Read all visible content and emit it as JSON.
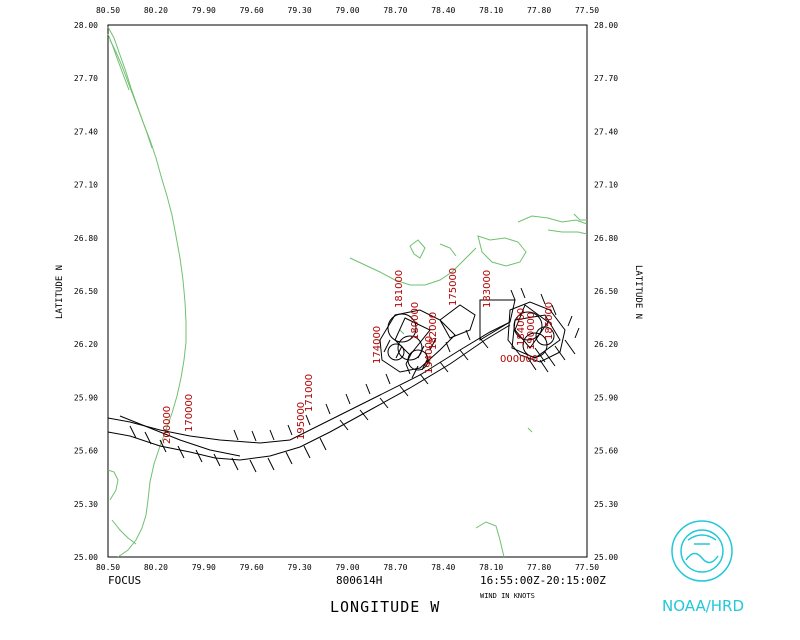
{
  "axes": {
    "lon_ticks": [
      "80.50",
      "80.20",
      "79.90",
      "79.60",
      "79.30",
      "79.00",
      "78.70",
      "78.40",
      "78.10",
      "77.80",
      "77.50"
    ],
    "lat_ticks": [
      "28.00",
      "27.70",
      "27.40",
      "27.10",
      "26.80",
      "26.50",
      "26.20",
      "25.90",
      "25.60",
      "25.30",
      "25.00"
    ],
    "xlabel": "LONGITUDE   W",
    "ylabel_left": "LATITUDE  N",
    "ylabel_right": "LATITUDE  N"
  },
  "footer": {
    "left": "FOCUS",
    "center": "800614H",
    "right": "16:55:00Z-20:15:00Z",
    "units": "WIND IN KNOTS"
  },
  "logo": {
    "text": "NOAA/HRD",
    "mark": "noaa-seal-icon"
  },
  "time_labels": [
    "200000",
    "170000",
    "195000",
    "171000",
    "174000",
    "181000",
    "180000",
    "182000",
    "175000",
    "183000",
    "194000",
    "184000",
    "190000",
    "185000",
    "000000"
  ],
  "colors": {
    "coast": "#70c070",
    "track": "#000000",
    "time_label": "#b00000",
    "logo": "#22c8d8"
  }
}
